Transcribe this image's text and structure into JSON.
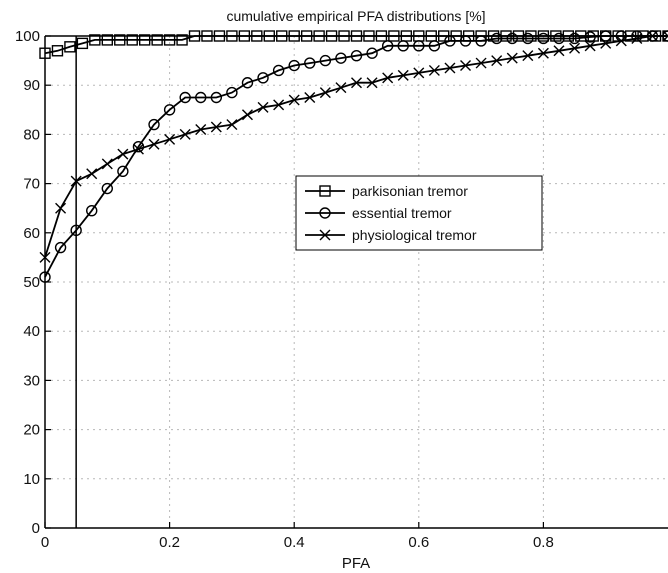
{
  "chart_data": {
    "type": "line",
    "title": "cumulative empirical PFA distributions [%]",
    "xlabel": "PFA",
    "ylabel": "",
    "xlim": [
      0,
      1
    ],
    "ylim": [
      0,
      100
    ],
    "xticks": [
      0,
      0.2,
      0.4,
      0.6,
      0.8
    ],
    "xtick_labels": [
      "0",
      "0.2",
      "0.4",
      "0.6",
      "0.8"
    ],
    "yticks": [
      0,
      10,
      20,
      30,
      40,
      50,
      60,
      70,
      80,
      90,
      100
    ],
    "ytick_labels": [
      "0",
      "10",
      "20",
      "30",
      "40",
      "50",
      "60",
      "70",
      "80",
      "90",
      "100"
    ],
    "grid": true,
    "legend_position": "center-right",
    "reference_line_x": 0.05,
    "series": [
      {
        "name": "parkisonian tremor",
        "marker": "square",
        "x": [
          0,
          0.02,
          0.04,
          0.06,
          0.08,
          0.1,
          0.12,
          0.14,
          0.16,
          0.18,
          0.2,
          0.22,
          0.24,
          0.26,
          0.28,
          0.3,
          0.32,
          0.34,
          0.36,
          0.38,
          0.4,
          0.42,
          0.44,
          0.46,
          0.48,
          0.5,
          0.52,
          0.54,
          0.56,
          0.58,
          0.6,
          0.62,
          0.64,
          0.66,
          0.68,
          0.7,
          0.72,
          0.74,
          0.76,
          0.78,
          0.8,
          0.82,
          0.84,
          0.86,
          0.88,
          0.9,
          0.92,
          0.94,
          0.96,
          0.98,
          1.0
        ],
        "y": [
          96.5,
          97,
          97.8,
          98.5,
          99.2,
          99.2,
          99.2,
          99.2,
          99.2,
          99.2,
          99.2,
          99.2,
          100,
          100,
          100,
          100,
          100,
          100,
          100,
          100,
          100,
          100,
          100,
          100,
          100,
          100,
          100,
          100,
          100,
          100,
          100,
          100,
          100,
          100,
          100,
          100,
          100,
          100,
          100,
          100,
          100,
          100,
          100,
          100,
          100,
          100,
          100,
          100,
          100,
          100,
          100
        ]
      },
      {
        "name": "essential tremor",
        "marker": "circle",
        "x": [
          0,
          0.025,
          0.05,
          0.075,
          0.1,
          0.125,
          0.15,
          0.175,
          0.2,
          0.225,
          0.25,
          0.275,
          0.3,
          0.325,
          0.35,
          0.375,
          0.4,
          0.425,
          0.45,
          0.475,
          0.5,
          0.525,
          0.55,
          0.575,
          0.6,
          0.625,
          0.65,
          0.675,
          0.7,
          0.725,
          0.75,
          0.775,
          0.8,
          0.825,
          0.85,
          0.875,
          0.9,
          0.925,
          0.95,
          0.975,
          1.0
        ],
        "y": [
          51,
          57,
          60.5,
          64.5,
          69,
          72.5,
          77.5,
          82,
          85,
          87.5,
          87.5,
          87.5,
          88.5,
          90.5,
          91.5,
          93,
          94,
          94.5,
          95,
          95.5,
          96,
          96.5,
          98,
          98,
          98,
          98,
          99,
          99,
          99,
          99.5,
          99.5,
          99.5,
          99.5,
          99.5,
          99.5,
          99.8,
          100,
          100,
          100,
          100,
          100
        ]
      },
      {
        "name": "physiological tremor",
        "marker": "x",
        "x": [
          0,
          0.025,
          0.05,
          0.075,
          0.1,
          0.125,
          0.15,
          0.175,
          0.2,
          0.225,
          0.25,
          0.275,
          0.3,
          0.325,
          0.35,
          0.375,
          0.4,
          0.425,
          0.45,
          0.475,
          0.5,
          0.525,
          0.55,
          0.575,
          0.6,
          0.625,
          0.65,
          0.675,
          0.7,
          0.725,
          0.75,
          0.775,
          0.8,
          0.825,
          0.85,
          0.875,
          0.9,
          0.925,
          0.95,
          0.975,
          1.0
        ],
        "y": [
          55,
          65,
          70.5,
          72,
          74,
          76,
          77,
          78,
          79,
          80,
          81,
          81.5,
          82,
          84,
          85.5,
          86,
          87,
          87.5,
          88.5,
          89.5,
          90.5,
          90.5,
          91.5,
          92,
          92.5,
          93,
          93.5,
          94,
          94.5,
          95,
          95.5,
          96,
          96.5,
          97,
          97.5,
          98,
          98.5,
          99,
          99.5,
          100,
          100
        ]
      }
    ]
  }
}
